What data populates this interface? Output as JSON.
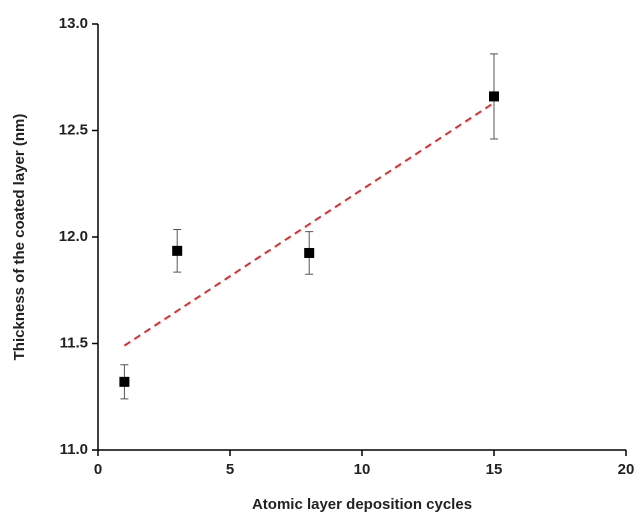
{
  "chart_data": {
    "type": "scatter",
    "xlabel": "Atomic layer deposition cycles",
    "ylabel": "Thickness of the coated layer (nm)",
    "series": [
      {
        "type": "scatter",
        "color": "#000000",
        "x": [
          1,
          3,
          8,
          15
        ],
        "values": [
          11.32,
          11.935,
          11.925,
          12.66
        ],
        "errors": [
          0.08,
          0.1,
          0.1,
          0.2
        ]
      },
      {
        "type": "line",
        "color": "#e8282b",
        "x": [
          1,
          15
        ],
        "values": [
          11.49,
          12.63
        ]
      }
    ],
    "xlim": [
      0,
      20
    ],
    "xticks": [
      0,
      5,
      10,
      15,
      20
    ],
    "ylim": [
      11,
      13
    ],
    "yticks": [
      {
        "value": 11,
        "label": "11.0"
      },
      {
        "value": 11.5,
        "label": "11.5"
      },
      {
        "value": 12,
        "label": "12.0"
      },
      {
        "value": 12.5,
        "label": "12.5"
      },
      {
        "value": 13,
        "label": "13.0"
      }
    ]
  }
}
